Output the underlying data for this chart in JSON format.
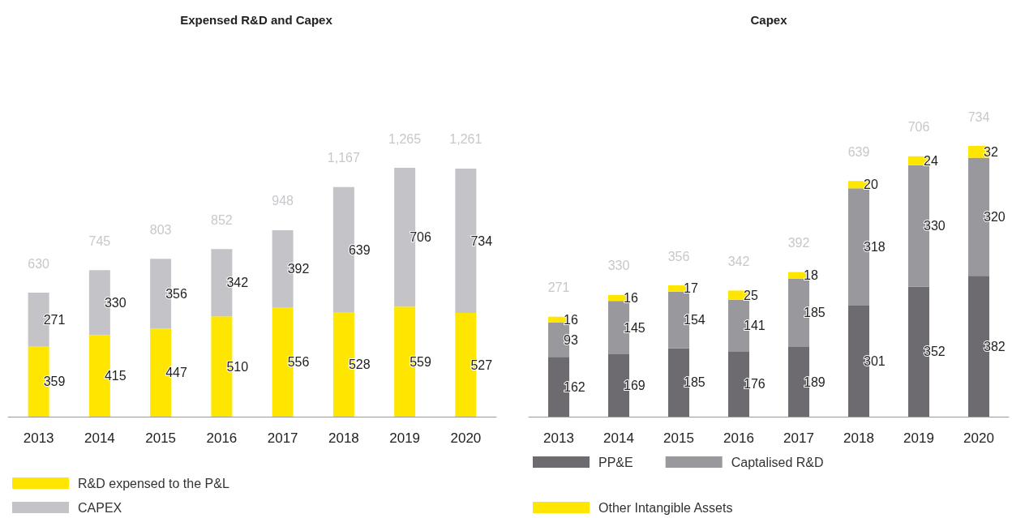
{
  "chart_data": [
    {
      "type": "bar",
      "title": "Expensed R&D and Capex",
      "categories": [
        "2013",
        "2014",
        "2015",
        "2016",
        "2017",
        "2018",
        "2019",
        "2020"
      ],
      "stacked": true,
      "data_labels": true,
      "legend": "bottom",
      "grid": false,
      "tick_labels": "x",
      "series": [
        {
          "name": "R&D expensed to the P&L",
          "color": "#ffe600",
          "values": [
            359,
            415,
            447,
            510,
            556,
            528,
            559,
            527
          ]
        },
        {
          "name": "CAPEX",
          "color": "#c4c4c8",
          "values": [
            271,
            330,
            356,
            342,
            392,
            639,
            706,
            734
          ]
        }
      ],
      "totals": [
        "630",
        "745",
        "803",
        "852",
        "948",
        "1,167",
        "1,265",
        "1,261"
      ]
    },
    {
      "type": "bar",
      "title": "Capex",
      "categories": [
        "2013",
        "2014",
        "2015",
        "2016",
        "2017",
        "2018",
        "2019",
        "2020"
      ],
      "stacked": true,
      "data_labels": true,
      "legend": "bottom",
      "grid": false,
      "tick_labels": "x",
      "series": [
        {
          "name": "PP&E",
          "color": "#6d6b70",
          "values": [
            162,
            169,
            185,
            176,
            189,
            301,
            352,
            382
          ]
        },
        {
          "name": "Captalised R&D",
          "color": "#99989d",
          "values": [
            93,
            145,
            154,
            141,
            185,
            318,
            330,
            320
          ]
        },
        {
          "name": "Other Intangible Assets",
          "color": "#ffe600",
          "values": [
            16,
            16,
            17,
            25,
            18,
            20,
            24,
            32
          ]
        }
      ],
      "totals": [
        "271",
        "330",
        "356",
        "342",
        "392",
        "639",
        "706",
        "734"
      ]
    }
  ]
}
